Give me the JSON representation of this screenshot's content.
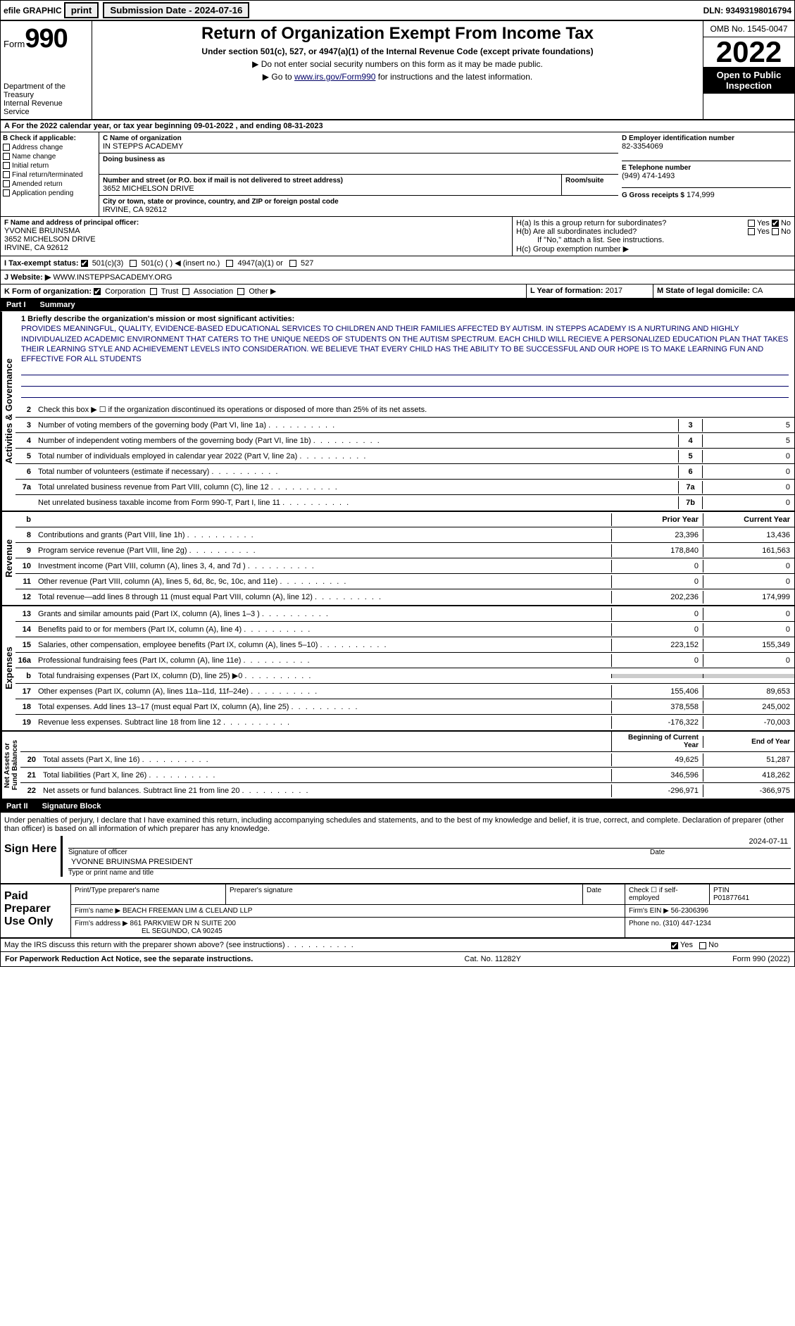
{
  "top": {
    "efile": "efile GRAPHIC",
    "print": "print",
    "sub_label": "Submission Date - 2024-07-16",
    "dln": "DLN: 93493198016794"
  },
  "header": {
    "form_text": "Form",
    "form_no": "990",
    "dept": "Department of the Treasury\nInternal Revenue Service",
    "title": "Return of Organization Exempt From Income Tax",
    "subtitle": "Under section 501(c), 527, or 4947(a)(1) of the Internal Revenue Code (except private foundations)",
    "note1": "▶ Do not enter social security numbers on this form as it may be made public.",
    "note2": "▶ Go to www.irs.gov/Form990 for instructions and the latest information.",
    "link": "www.irs.gov/Form990",
    "omb": "OMB No. 1545-0047",
    "year": "2022",
    "open": "Open to Public Inspection"
  },
  "section_a": "A For the 2022 calendar year, or tax year beginning 09-01-2022   , and ending 08-31-2023",
  "section_b": {
    "label": "B Check if applicable:",
    "opts": [
      "Address change",
      "Name change",
      "Initial return",
      "Final return/terminated",
      "Amended return",
      "Application pending"
    ]
  },
  "section_c": {
    "label": "C Name of organization",
    "name": "IN STEPPS ACADEMY",
    "dba_label": "Doing business as",
    "addr_label": "Number and street (or P.O. box if mail is not delivered to street address)",
    "room_label": "Room/suite",
    "addr": "3652 MICHELSON DRIVE",
    "city_label": "City or town, state or province, country, and ZIP or foreign postal code",
    "city": "IRVINE, CA  92612"
  },
  "section_d": {
    "label": "D Employer identification number",
    "val": "82-3354069"
  },
  "section_e": {
    "label": "E Telephone number",
    "val": "(949) 474-1493"
  },
  "section_g": {
    "label": "G Gross receipts $",
    "val": "174,999"
  },
  "section_f": {
    "label": "F  Name and address of principal officer:",
    "name": "YVONNE BRUINSMA",
    "addr1": "3652 MICHELSON DRIVE",
    "addr2": "IRVINE, CA  92612"
  },
  "section_h": {
    "ha": "H(a)  Is this a group return for subordinates?",
    "hb": "H(b)  Are all subordinates included?",
    "hb_note": "If \"No,\" attach a list. See instructions.",
    "hc": "H(c)  Group exemption number ▶",
    "yes": "Yes",
    "no": "No"
  },
  "section_i": {
    "label": "I   Tax-exempt status:",
    "opts": [
      "501(c)(3)",
      "501(c) (  ) ◀ (insert no.)",
      "4947(a)(1) or",
      "527"
    ]
  },
  "section_j": {
    "label": "J   Website: ▶",
    "val": "WWW.INSTEPPSACADEMY.ORG"
  },
  "section_k": {
    "label": "K Form of organization:",
    "opts": [
      "Corporation",
      "Trust",
      "Association",
      "Other ▶"
    ]
  },
  "section_l": {
    "label": "L Year of formation:",
    "val": "2017"
  },
  "section_m": {
    "label": "M State of legal domicile:",
    "val": "CA"
  },
  "parts": {
    "i": "Part I",
    "i_title": "Summary",
    "ii": "Part II",
    "ii_title": "Signature Block"
  },
  "mission": {
    "label": "1   Briefly describe the organization's mission or most significant activities:",
    "text": "PROVIDES MEANINGFUL, QUALITY, EVIDENCE-BASED EDUCATIONAL SERVICES TO CHILDREN AND THEIR FAMILIES AFFECTED BY AUTISM. IN STEPPS ACADEMY IS A NURTURING AND HIGHLY INDIVIDUALIZED ACADEMIC ENVIRONMENT THAT CATERS TO THE UNIQUE NEEDS OF STUDENTS ON THE AUTISM SPECTRUM. EACH CHILD WILL RECIEVE A PERSONALIZED EDUCATION PLAN THAT TAKES THEIR LEARNING STYLE AND ACHIEVEMENT LEVELS INTO CONSIDERATION. WE BELIEVE THAT EVERY CHILD HAS THE ABILITY TO BE SUCCESSFUL AND OUR HOPE IS TO MAKE LEARNING FUN AND EFFECTIVE FOR ALL STUDENTS"
  },
  "gov_lines": [
    {
      "n": "2",
      "d": "Check this box ▶ ☐ if the organization discontinued its operations or disposed of more than 25% of its net assets."
    },
    {
      "n": "3",
      "d": "Number of voting members of the governing body (Part VI, line 1a)",
      "ln": "3",
      "v": "5"
    },
    {
      "n": "4",
      "d": "Number of independent voting members of the governing body (Part VI, line 1b)",
      "ln": "4",
      "v": "5"
    },
    {
      "n": "5",
      "d": "Total number of individuals employed in calendar year 2022 (Part V, line 2a)",
      "ln": "5",
      "v": "0"
    },
    {
      "n": "6",
      "d": "Total number of volunteers (estimate if necessary)",
      "ln": "6",
      "v": "0"
    },
    {
      "n": "7a",
      "d": "Total unrelated business revenue from Part VIII, column (C), line 12",
      "ln": "7a",
      "v": "0"
    },
    {
      "n": "",
      "d": "Net unrelated business taxable income from Form 990-T, Part I, line 11",
      "ln": "7b",
      "v": "0"
    }
  ],
  "col_hdrs": {
    "b": "b",
    "prior": "Prior Year",
    "current": "Current Year"
  },
  "rev_lines": [
    {
      "n": "8",
      "d": "Contributions and grants (Part VIII, line 1h)",
      "p": "23,396",
      "c": "13,436"
    },
    {
      "n": "9",
      "d": "Program service revenue (Part VIII, line 2g)",
      "p": "178,840",
      "c": "161,563"
    },
    {
      "n": "10",
      "d": "Investment income (Part VIII, column (A), lines 3, 4, and 7d )",
      "p": "0",
      "c": "0"
    },
    {
      "n": "11",
      "d": "Other revenue (Part VIII, column (A), lines 5, 6d, 8c, 9c, 10c, and 11e)",
      "p": "0",
      "c": "0"
    },
    {
      "n": "12",
      "d": "Total revenue—add lines 8 through 11 (must equal Part VIII, column (A), line 12)",
      "p": "202,236",
      "c": "174,999"
    }
  ],
  "exp_lines": [
    {
      "n": "13",
      "d": "Grants and similar amounts paid (Part IX, column (A), lines 1–3 )",
      "p": "0",
      "c": "0"
    },
    {
      "n": "14",
      "d": "Benefits paid to or for members (Part IX, column (A), line 4)",
      "p": "0",
      "c": "0"
    },
    {
      "n": "15",
      "d": "Salaries, other compensation, employee benefits (Part IX, column (A), lines 5–10)",
      "p": "223,152",
      "c": "155,349"
    },
    {
      "n": "16a",
      "d": "Professional fundraising fees (Part IX, column (A), line 11e)",
      "p": "0",
      "c": "0"
    },
    {
      "n": "b",
      "d": "Total fundraising expenses (Part IX, column (D), line 25) ▶0",
      "p": "",
      "c": "",
      "shade": true
    },
    {
      "n": "17",
      "d": "Other expenses (Part IX, column (A), lines 11a–11d, 11f–24e)",
      "p": "155,406",
      "c": "89,653"
    },
    {
      "n": "18",
      "d": "Total expenses. Add lines 13–17 (must equal Part IX, column (A), line 25)",
      "p": "378,558",
      "c": "245,002"
    },
    {
      "n": "19",
      "d": "Revenue less expenses. Subtract line 18 from line 12",
      "p": "-176,322",
      "c": "-70,003"
    }
  ],
  "net_hdrs": {
    "begin": "Beginning of Current Year",
    "end": "End of Year"
  },
  "net_lines": [
    {
      "n": "20",
      "d": "Total assets (Part X, line 16)",
      "p": "49,625",
      "c": "51,287"
    },
    {
      "n": "21",
      "d": "Total liabilities (Part X, line 26)",
      "p": "346,596",
      "c": "418,262"
    },
    {
      "n": "22",
      "d": "Net assets or fund balances. Subtract line 21 from line 20",
      "p": "-296,971",
      "c": "-366,975"
    }
  ],
  "vert_labels": {
    "gov": "Activities & Governance",
    "rev": "Revenue",
    "exp": "Expenses",
    "net": "Net Assets or\nFund Balances"
  },
  "sig": {
    "penalty": "Under penalties of perjury, I declare that I have examined this return, including accompanying schedules and statements, and to the best of my knowledge and belief, it is true, correct, and complete. Declaration of preparer (other than officer) is based on all information of which preparer has any knowledge.",
    "sign_here": "Sign Here",
    "sig_officer": "Signature of officer",
    "date_label": "Date",
    "date": "2024-07-11",
    "name": "YVONNE BRUINSMA PRESIDENT",
    "name_caption": "Type or print name and title"
  },
  "prep": {
    "label": "Paid Preparer Use Only",
    "r1": {
      "c1": "Print/Type preparer's name",
      "c2": "Preparer's signature",
      "c3": "Date",
      "c4": "Check ☐ if self-employed",
      "c5l": "PTIN",
      "c5v": "P01877641"
    },
    "r2": {
      "label": "Firm's name    ▶",
      "val": "BEACH FREEMAN LIM & CLELAND LLP",
      "ein_l": "Firm's EIN ▶",
      "ein": "56-2306396"
    },
    "r3": {
      "label": "Firm's address ▶",
      "val1": "861 PARKVIEW DR N SUITE 200",
      "val2": "EL SEGUNDO, CA  90245",
      "ph_l": "Phone no.",
      "ph": "(310) 447-1234"
    }
  },
  "footer": {
    "discuss": "May the IRS discuss this return with the preparer shown above? (see instructions)",
    "yes": "Yes",
    "no": "No",
    "paperwork": "For Paperwork Reduction Act Notice, see the separate instructions.",
    "cat": "Cat. No. 11282Y",
    "form": "Form 990 (2022)"
  }
}
